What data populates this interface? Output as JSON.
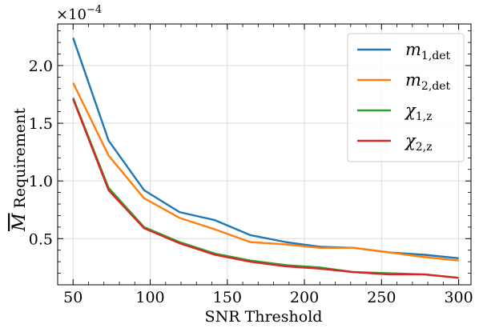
{
  "chart_data": {
    "type": "line",
    "title": "",
    "xlabel": "SNR Threshold",
    "ylabel": "Requirement",
    "ylabel_symbol": "M",
    "y_offset_text": "×10",
    "y_offset_exponent": "−4",
    "xlim": [
      40,
      308
    ],
    "ylim": [
      0.1,
      2.36
    ],
    "xticks": [
      50,
      100,
      150,
      200,
      250,
      300
    ],
    "yticks": [
      0.5,
      1.0,
      1.5,
      2.0
    ],
    "ytick_labels": [
      "0.5",
      "1.0",
      "1.5",
      "2.0"
    ],
    "grid": true,
    "legend_position": "top-right",
    "x": [
      50,
      73,
      96,
      119,
      142,
      165,
      188,
      210,
      232,
      255,
      278,
      300
    ],
    "series": [
      {
        "name": "m",
        "sub": "1,det",
        "color": "#1f77b4",
        "values": [
          2.24,
          1.35,
          0.92,
          0.73,
          0.66,
          0.53,
          0.47,
          0.43,
          0.42,
          0.38,
          0.36,
          0.33
        ]
      },
      {
        "name": "m",
        "sub": "2,det",
        "color": "#ff7f0e",
        "values": [
          1.85,
          1.22,
          0.85,
          0.68,
          0.58,
          0.47,
          0.45,
          0.42,
          0.42,
          0.38,
          0.34,
          0.31
        ]
      },
      {
        "name": "χ",
        "sub": "1,z",
        "color": "#2ca02c",
        "values": [
          1.72,
          0.94,
          0.6,
          0.47,
          0.37,
          0.31,
          0.27,
          0.25,
          0.21,
          0.2,
          0.19,
          0.16
        ]
      },
      {
        "name": "χ",
        "sub": "2,z",
        "color": "#d62728",
        "values": [
          1.71,
          0.92,
          0.59,
          0.46,
          0.36,
          0.3,
          0.26,
          0.24,
          0.21,
          0.19,
          0.19,
          0.16
        ]
      }
    ]
  }
}
